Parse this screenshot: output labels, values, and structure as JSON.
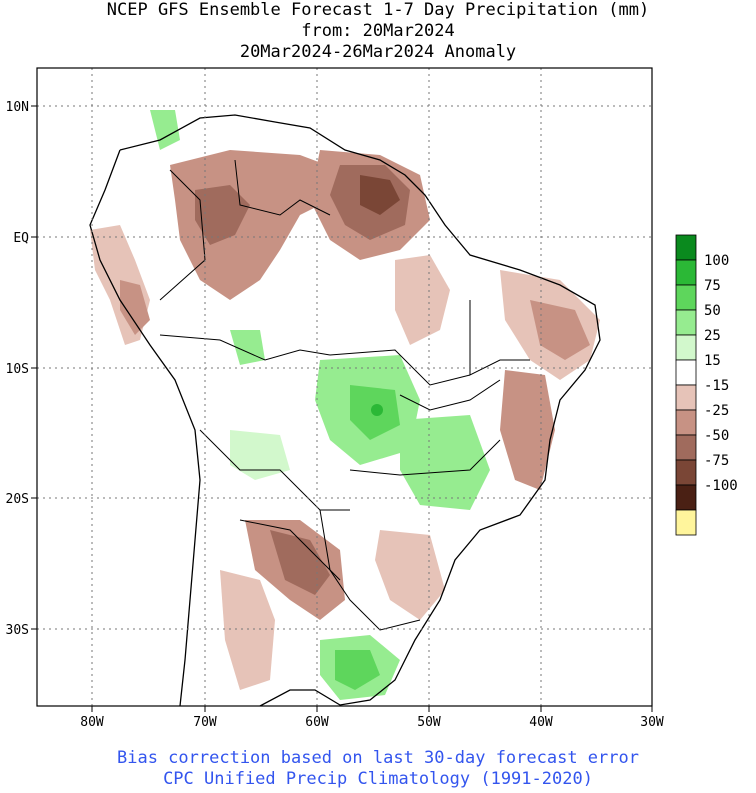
{
  "header": {
    "line1": "NCEP GFS Ensemble Forecast 1-7 Day Precipitation (mm)",
    "line2": "from: 20Mar2024",
    "line3": "20Mar2024-26Mar2024 Anomaly"
  },
  "map": {
    "lat_labels": [
      "10N",
      "EQ",
      "10S",
      "20S",
      "30S"
    ],
    "lon_labels": [
      "80W",
      "70W",
      "60W",
      "50W",
      "40W",
      "30W"
    ]
  },
  "legend": {
    "labels": [
      "100",
      "75",
      "50",
      "25",
      "15",
      "-15",
      "-25",
      "-50",
      "-75",
      "-100"
    ],
    "colors": [
      "#0a8a1e",
      "#2bb836",
      "#5ed65c",
      "#96ec90",
      "#d2f8cc",
      "#ffffff",
      "#e6c3b8",
      "#c79284",
      "#a06b5d",
      "#7a4636",
      "#4a2014",
      "#fff59c"
    ]
  },
  "footer": {
    "line1": "Bias correction based on last 30-day forecast error",
    "line2": "CPC Unified Precip Climatology (1991-2020)",
    "color": "#3355ee"
  }
}
